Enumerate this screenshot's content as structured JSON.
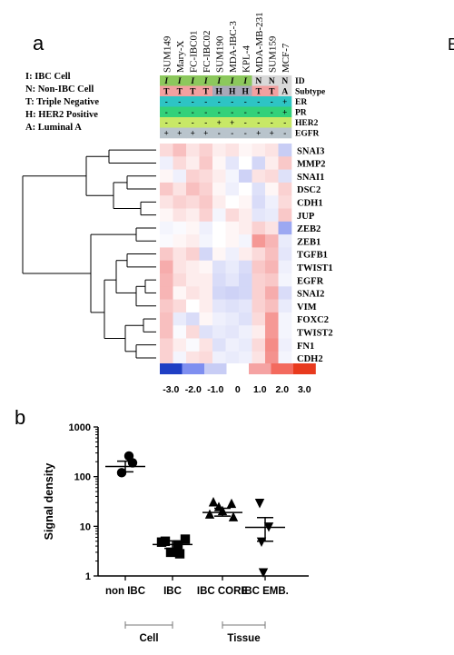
{
  "panel_a": {
    "label": "a",
    "legend": [
      "I: IBC Cell",
      "N: Non-IBC Cell",
      "T: Triple Negative",
      "H: HER2 Positive",
      "A: Luminal A"
    ],
    "cell_lines": [
      "SUM149",
      "Mary-X",
      "FC-IBC01",
      "FC-IBC02",
      "SUM190",
      "MDA-IBC-3",
      "KPL-4",
      "MDA-MB-231",
      "SUM159",
      "MCF-7"
    ],
    "annotation_rows": [
      {
        "label": "ID",
        "values": [
          "I",
          "I",
          "I",
          "I",
          "I",
          "I",
          "I",
          "N",
          "N",
          "N"
        ],
        "color": "#8cc85c"
      },
      {
        "label": "Subtype",
        "values": [
          "T",
          "T",
          "T",
          "T",
          "H",
          "H",
          "H",
          "T",
          "T",
          "A"
        ]
      },
      {
        "label": "ER",
        "values": [
          "-",
          "-",
          "-",
          "-",
          "-",
          "-",
          "-",
          "-",
          "-",
          "+"
        ],
        "color": "#2ec4c4"
      },
      {
        "label": "PR",
        "values": [
          "-",
          "-",
          "-",
          "-",
          "-",
          "-",
          "-",
          "-",
          "-",
          "+"
        ],
        "color": "#33d17a"
      },
      {
        "label": "HER2",
        "values": [
          "-",
          "-",
          "-",
          "-",
          "+",
          "+",
          "-",
          "-",
          "-",
          "-"
        ],
        "color": "#c8e866"
      },
      {
        "label": "EGFR",
        "values": [
          "+",
          "+",
          "+",
          "+",
          "-",
          "-",
          "-",
          "+",
          "+",
          "-"
        ],
        "color": "#b9c4cc"
      }
    ],
    "subtype_colors": {
      "T": "#f2a0a0",
      "H": "#a8a8b8",
      "A": "#dadada"
    },
    "genes": [
      "SNAI3",
      "MMP2",
      "SNAI1",
      "DSC2",
      "CDH1",
      "JUP",
      "ZEB2",
      "ZEB1",
      "TGFB1",
      "TWIST1",
      "EGFR",
      "SNAI2",
      "VIM",
      "FOXC2",
      "TWIST2",
      "FN1",
      "CDH2"
    ],
    "heatmap": [
      [
        0.4,
        0.7,
        0.3,
        0.5,
        0.2,
        0.3,
        0.1,
        0.2,
        0.3,
        -1.0
      ],
      [
        -0.3,
        0.4,
        0.2,
        0.6,
        0.1,
        -0.5,
        0.0,
        -0.8,
        0.2,
        0.6
      ],
      [
        0.1,
        -0.3,
        0.5,
        0.4,
        0.2,
        -0.2,
        -0.9,
        0.3,
        0.4,
        -0.6
      ],
      [
        0.6,
        0.3,
        0.7,
        0.5,
        0.1,
        -0.3,
        0.0,
        -0.6,
        0.1,
        0.5
      ],
      [
        0.3,
        0.5,
        0.4,
        0.6,
        0.2,
        0.0,
        0.1,
        -0.7,
        -0.3,
        0.4
      ],
      [
        0.1,
        0.3,
        0.2,
        0.5,
        -0.2,
        0.4,
        0.2,
        -0.5,
        -0.4,
        0.6
      ],
      [
        -0.2,
        -0.1,
        0.1,
        -0.3,
        0.0,
        0.1,
        0.2,
        0.5,
        0.3,
        -1.6
      ],
      [
        -0.1,
        0.1,
        0.2,
        -0.2,
        0.0,
        0.1,
        -0.2,
        1.2,
        0.8,
        -0.4
      ],
      [
        0.6,
        0.3,
        0.5,
        -0.8,
        0.1,
        -0.3,
        0.2,
        0.4,
        0.7,
        -0.5
      ],
      [
        0.9,
        0.3,
        0.2,
        0.1,
        -0.6,
        -0.4,
        -0.7,
        0.6,
        0.8,
        -0.3
      ],
      [
        0.8,
        0.4,
        0.2,
        0.2,
        -0.7,
        -0.5,
        -0.8,
        0.5,
        0.6,
        -0.2
      ],
      [
        0.8,
        0.1,
        0.3,
        0.2,
        -0.8,
        -0.9,
        -0.8,
        0.5,
        0.9,
        -0.7
      ],
      [
        0.6,
        0.4,
        0.0,
        0.2,
        -0.5,
        -0.6,
        -0.5,
        0.5,
        0.7,
        -0.4
      ],
      [
        0.7,
        -0.4,
        -0.7,
        0.1,
        -0.3,
        -0.4,
        -0.6,
        0.4,
        1.2,
        -0.2
      ],
      [
        0.7,
        -0.1,
        0.4,
        -0.6,
        -0.4,
        -0.5,
        -0.3,
        0.2,
        1.2,
        -0.2
      ],
      [
        0.5,
        0.2,
        -0.1,
        0.3,
        -0.6,
        -0.3,
        -0.4,
        0.4,
        1.4,
        -0.3
      ],
      [
        0.5,
        -0.2,
        0.3,
        0.4,
        -0.3,
        -0.4,
        -0.3,
        0.3,
        1.3,
        -0.2
      ]
    ],
    "scale_labels": [
      "-3.0",
      "-2.0",
      "-1.0",
      "0",
      "1.0",
      "2.0",
      "3.0"
    ],
    "scale_colors": [
      "#1f3fc4",
      "#7f8ff0",
      "#c8cdf5",
      "#ffffff",
      "#f5a3a3",
      "#f36a5e",
      "#e83a1e"
    ]
  },
  "panel_b": {
    "label": "b",
    "chart_data": {
      "type": "scatter",
      "ylabel": "Signal density",
      "yscale": "log",
      "ylim": [
        1,
        1000
      ],
      "yticks": [
        "1",
        "10",
        "100",
        "1000"
      ],
      "categories": [
        "non IBC",
        "IBC",
        "IBC CORE",
        "IBC EMB."
      ],
      "groups": [
        {
          "category": "non IBC",
          "marker": "circle",
          "points": [
            260,
            190,
            120
          ],
          "mean": 160,
          "sem_low": 125,
          "sem_high": 205
        },
        {
          "category": "IBC",
          "marker": "square",
          "points": [
            5.5,
            5.0,
            4.2,
            4.8,
            3.0,
            2.8
          ],
          "mean": 4.3,
          "sem_low": 3.6,
          "sem_high": 5.1
        },
        {
          "category": "IBC CORE",
          "marker": "triangle-up",
          "points": [
            30,
            28,
            24,
            17,
            15,
            20
          ],
          "mean": 19,
          "sem_low": 16,
          "sem_high": 23
        },
        {
          "category": "IBC EMB.",
          "marker": "triangle-down",
          "points": [
            30,
            10,
            5,
            1.2
          ],
          "mean": 9.5,
          "sem_low": 5,
          "sem_high": 15
        }
      ]
    },
    "brackets": [
      {
        "label": "Cell",
        "from": "non IBC",
        "to": "IBC"
      },
      {
        "label": "Tissue",
        "from": "IBC CORE",
        "to": "IBC EMB."
      }
    ]
  },
  "edge_mark": "E"
}
